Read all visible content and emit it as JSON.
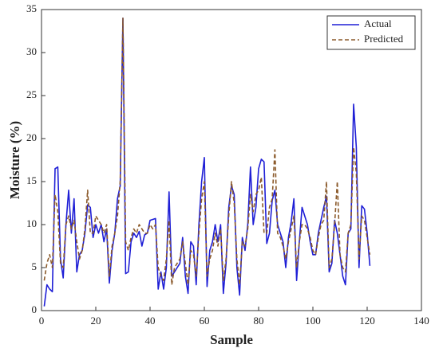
{
  "chart_data": {
    "type": "line",
    "xlabel": "Sample",
    "ylabel": "Moisture (%)",
    "x": [
      1,
      2,
      3,
      4,
      5,
      6,
      7,
      8,
      9,
      10,
      11,
      12,
      13,
      14,
      15,
      16,
      17,
      18,
      19,
      20,
      21,
      22,
      23,
      24,
      25,
      26,
      27,
      28,
      29,
      30,
      31,
      32,
      33,
      34,
      35,
      36,
      37,
      38,
      39,
      40,
      41,
      42,
      43,
      44,
      45,
      46,
      47,
      48,
      49,
      50,
      51,
      52,
      53,
      54,
      55,
      56,
      57,
      58,
      59,
      60,
      61,
      62,
      63,
      64,
      65,
      66,
      67,
      68,
      69,
      70,
      71,
      72,
      73,
      74,
      75,
      76,
      77,
      78,
      79,
      80,
      81,
      82,
      83,
      84,
      85,
      86,
      87,
      88,
      89,
      90,
      91,
      92,
      93,
      94,
      95,
      96,
      97,
      98,
      99,
      100,
      101,
      102,
      103,
      104,
      105,
      106,
      107,
      108,
      109,
      110,
      111,
      112,
      113,
      114,
      115,
      116,
      117,
      118,
      119,
      120,
      121
    ],
    "series": [
      {
        "name": "Actual",
        "color": "#1f1fd6",
        "style": "solid",
        "values": [
          0.5,
          3,
          2.5,
          2.2,
          16.5,
          16.7,
          6,
          3.8,
          10,
          14,
          9,
          13,
          4.5,
          6.5,
          7,
          9,
          12.3,
          12,
          8.5,
          10,
          9,
          10,
          8,
          9.5,
          3.2,
          7,
          9,
          13,
          14.5,
          34,
          4.3,
          4.5,
          8,
          9,
          8.5,
          9.2,
          7.5,
          8.8,
          9,
          10.5,
          10.6,
          10.7,
          2.5,
          4.5,
          2.5,
          5,
          13.8,
          4,
          4.5,
          5,
          5.5,
          8.5,
          4,
          2,
          8,
          7.5,
          3,
          10,
          15,
          17.8,
          2.8,
          7,
          8,
          10,
          8,
          10,
          2,
          5.5,
          12,
          14.5,
          13.5,
          5,
          1.8,
          8.5,
          7,
          10,
          16.7,
          10,
          12,
          16.5,
          17.6,
          17.3,
          7.8,
          9,
          12.8,
          14,
          10,
          9,
          8,
          5,
          8.5,
          10.3,
          13,
          3.5,
          8,
          12,
          11,
          10,
          8,
          6.5,
          6.5,
          9,
          10.5,
          12,
          13.3,
          4.5,
          5.5,
          10.5,
          9,
          6.5,
          4,
          3,
          9,
          9.5,
          24,
          19,
          5,
          12.2,
          11.8,
          9,
          5.2
        ]
      },
      {
        "name": "Predicted",
        "color": "#8b5a2b",
        "style": "dashed",
        "values": [
          3.5,
          5.5,
          6.5,
          5,
          13.5,
          11.5,
          5.5,
          5,
          10,
          11,
          9.5,
          10.5,
          8,
          6,
          7,
          9.5,
          14,
          9,
          9,
          11,
          10.5,
          10,
          9,
          10,
          4,
          7.5,
          9,
          11,
          15,
          34,
          8,
          7,
          8.5,
          9.5,
          9,
          10,
          9.5,
          9,
          9,
          10,
          9.5,
          10,
          5,
          4,
          3.5,
          6,
          10.5,
          3,
          5,
          5.5,
          6,
          8,
          5.5,
          3,
          7,
          6.5,
          4,
          9,
          13,
          15,
          4,
          6,
          7,
          9,
          7.5,
          9.5,
          3.5,
          6,
          11,
          15,
          12.5,
          6,
          3,
          8,
          7.5,
          9.5,
          13.5,
          11.5,
          13.5,
          14,
          15.5,
          9,
          9,
          12,
          13,
          18.7,
          9,
          8.5,
          7.5,
          6,
          8,
          9.5,
          11,
          5,
          8,
          10,
          10,
          9.5,
          8.5,
          7,
          6.5,
          8.5,
          10,
          10.5,
          15,
          5,
          6,
          10,
          15,
          6.5,
          5,
          4.5,
          9,
          10,
          19,
          16,
          6,
          11,
          10.5,
          8.5,
          6.5
        ]
      }
    ],
    "xlim": [
      0,
      140
    ],
    "xticks": [
      0,
      20,
      40,
      60,
      80,
      100,
      120,
      140
    ],
    "ylim": [
      0,
      35
    ],
    "yticks": [
      0,
      5,
      10,
      15,
      20,
      25,
      30,
      35
    ],
    "legend": "upper right"
  }
}
